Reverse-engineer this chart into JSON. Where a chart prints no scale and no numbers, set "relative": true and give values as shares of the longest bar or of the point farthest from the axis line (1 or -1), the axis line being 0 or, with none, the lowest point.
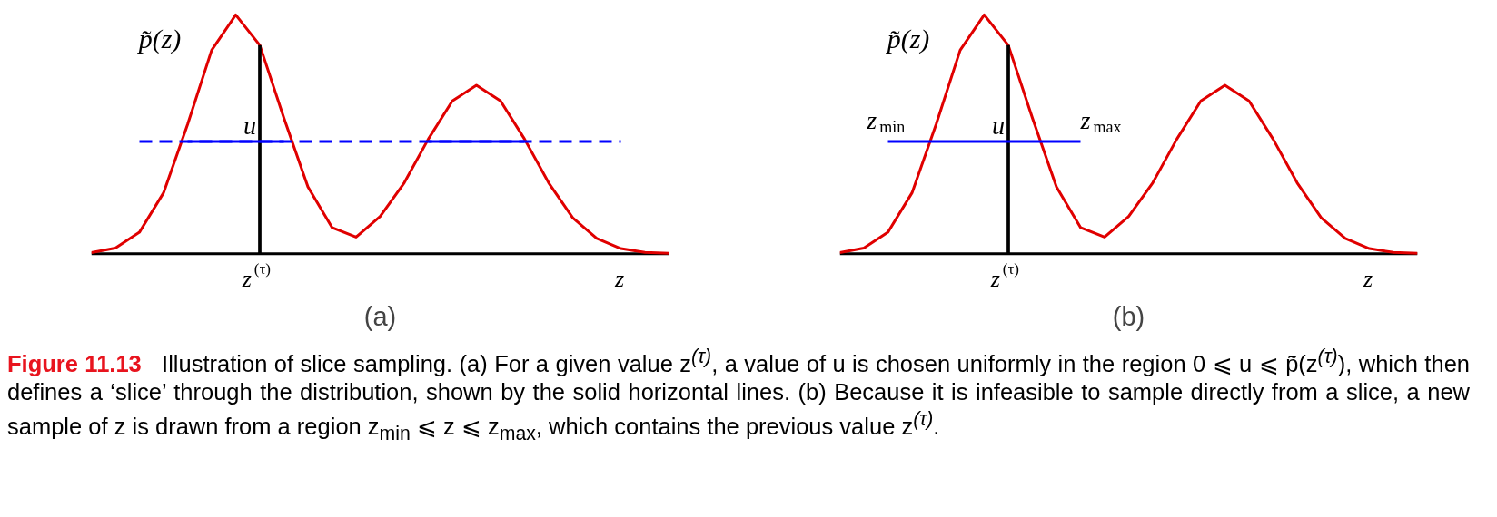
{
  "chart_data": [
    {
      "type": "line",
      "relative": true,
      "xlabel": "(a)",
      "categories": [
        null,
        null,
        null,
        null,
        null,
        null,
        null,
        "z$^{(τ)}$",
        null,
        null,
        null,
        null,
        null,
        null,
        null,
        null,
        null,
        null,
        null,
        null,
        null,
        null,
        "z",
        null,
        null
      ],
      "annotations": [
        "p̃(z)",
        "u",
        "Figure 11.13",
        "Illustration of slice sampling.  (a) For a given value z$^{(τ)}$, a value of u is chosen uniformly in the region 0 ⩽ u ⩽ p̃(z$^{(τ)}$), which then defines a ‘slice’ through the distribution, shown by the solid horizontal lines.  (b) Because it is infeasible to sample directly from a slice, a new sample of z is drawn from a region z$_{min}$ ⩽ z ⩽ z$_{max}$, which contains the previous value z$^{(τ)}$."
      ],
      "series": [
        {
          "color": "#e00000",
          "values": [
            0.005,
            0.024,
            0.09,
            0.255,
            0.541,
            0.852,
            1.0,
            0.873,
            0.569,
            0.28,
            0.11,
            0.07,
            0.156,
            0.297,
            0.48,
            0.64,
            0.705,
            0.64,
            0.48,
            0.297,
            0.151,
            0.064,
            0.022,
            0.006,
            0.002
          ]
        },
        {
          "type": "bar",
          "color": "#000000",
          "values": [
            null,
            null,
            null,
            null,
            null,
            null,
            null,
            0.873,
            null,
            null,
            null,
            null,
            null,
            null,
            null,
            null,
            null,
            null,
            null,
            null,
            null,
            null,
            null,
            null,
            null
          ]
        },
        {
          "color": "#0000ff",
          "line_style": "dashed",
          "values": [
            null,
            null,
            0.47,
            0.47,
            0.47,
            0.47,
            0.47,
            0.47,
            0.47,
            0.47,
            0.47,
            0.47,
            0.47,
            0.47,
            0.47,
            0.47,
            0.47,
            0.47,
            0.47,
            0.47,
            0.47,
            0.47,
            0.47,
            null,
            null
          ]
        },
        {
          "color": "#0000ff",
          "values": [
            null,
            null,
            null,
            null,
            0.47,
            0.47,
            0.47,
            0.47,
            0.47,
            null,
            null,
            null,
            null,
            null,
            0.47,
            0.47,
            0.47,
            0.47,
            0.47,
            null,
            null,
            null,
            null,
            null,
            null
          ]
        }
      ]
    },
    {
      "type": "line",
      "relative": true,
      "xlabel": "(b)",
      "categories": [
        null,
        null,
        null,
        null,
        null,
        null,
        null,
        "z$^{(τ)}$",
        null,
        null,
        null,
        null,
        null,
        null,
        null,
        null,
        null,
        null,
        null,
        null,
        null,
        null,
        "z",
        null,
        null
      ],
      "annotations": [
        "p̃(z)",
        "u",
        "z$_{min}$",
        "z$_{max}$"
      ],
      "series": [
        {
          "color": "#e00000",
          "values": [
            0.005,
            0.024,
            0.09,
            0.255,
            0.541,
            0.852,
            1.0,
            0.873,
            0.569,
            0.28,
            0.11,
            0.07,
            0.156,
            0.297,
            0.48,
            0.64,
            0.705,
            0.64,
            0.48,
            0.297,
            0.151,
            0.064,
            0.022,
            0.006,
            0.002
          ]
        },
        {
          "type": "bar",
          "color": "#000000",
          "values": [
            null,
            null,
            null,
            null,
            null,
            null,
            null,
            0.873,
            null,
            null,
            null,
            null,
            null,
            null,
            null,
            null,
            null,
            null,
            null,
            null,
            null,
            null,
            null,
            null,
            null
          ]
        },
        {
          "color": "#0000ff",
          "values": [
            null,
            null,
            0.47,
            0.47,
            0.47,
            0.47,
            0.47,
            0.47,
            0.47,
            0.47,
            0.47,
            null,
            null,
            null,
            null,
            null,
            null,
            null,
            null,
            null,
            null,
            null,
            null,
            null,
            null
          ]
        }
      ]
    }
  ]
}
